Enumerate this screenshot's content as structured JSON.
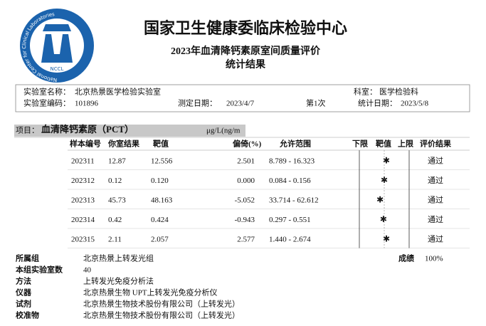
{
  "logo": {
    "ring_text": "National Center for Clinical Laboratories",
    "abbr": "NCCL"
  },
  "header": {
    "title": "国家卫生健康委临床检验中心",
    "subtitle": "2023年血清降钙素原室间质量评价",
    "subtitle2": "统计结果"
  },
  "info": {
    "lab_name_label": "实验室名称：",
    "lab_name": "北京热景医学检验实验室",
    "dept_label": "科室：",
    "dept": "医学检验科",
    "lab_code_label": "实验室编码：",
    "lab_code": "101896",
    "test_date_label": "测定日期：",
    "test_date": "2023/4/7",
    "round": "第1次",
    "stat_date_label": "统计日期：",
    "stat_date": "2023/5/8"
  },
  "item": {
    "label": "项目：",
    "name": "血清降钙素原（PCT）",
    "unit": "μg/L(ng/m"
  },
  "table": {
    "headers": [
      "样本编号",
      "你室结果",
      "靶值",
      "偏倚(%)",
      "允许范围",
      "下限",
      "靶值",
      "上限",
      "评价结果"
    ],
    "rows": [
      [
        "202311",
        "12.87",
        "12.556",
        "2.501",
        "8.789 - 16.323",
        "通过"
      ],
      [
        "202312",
        "0.12",
        "0.120",
        "0.000",
        "0.084 - 0.156",
        "通过"
      ],
      [
        "202313",
        "45.73",
        "48.163",
        "-5.052",
        "33.714 - 62.612",
        "通过"
      ],
      [
        "202314",
        "0.42",
        "0.424",
        "-0.943",
        "0.297 - 0.551",
        "通过"
      ],
      [
        "202315",
        "2.11",
        "2.057",
        "2.577",
        "1.440 - 2.674",
        "通过"
      ]
    ]
  },
  "summary": {
    "group_label": "所属组",
    "group": "北京热景上转发光组",
    "score_label": "成绩",
    "score": "100%",
    "count_label": "本组实验室数",
    "count": "40",
    "method_label": "方法",
    "method": "上转发光免疫分析法",
    "instrument_label": "仪器",
    "instrument": "北京热景生物 UPT上转发光免疫分析仪",
    "reagent_label": "试剂",
    "reagent": "北京热景生物技术股份有限公司（上转发光）",
    "calibrator_label": "校准物",
    "calibrator": "北京热景生物技术股份有限公司（上转发光）"
  }
}
